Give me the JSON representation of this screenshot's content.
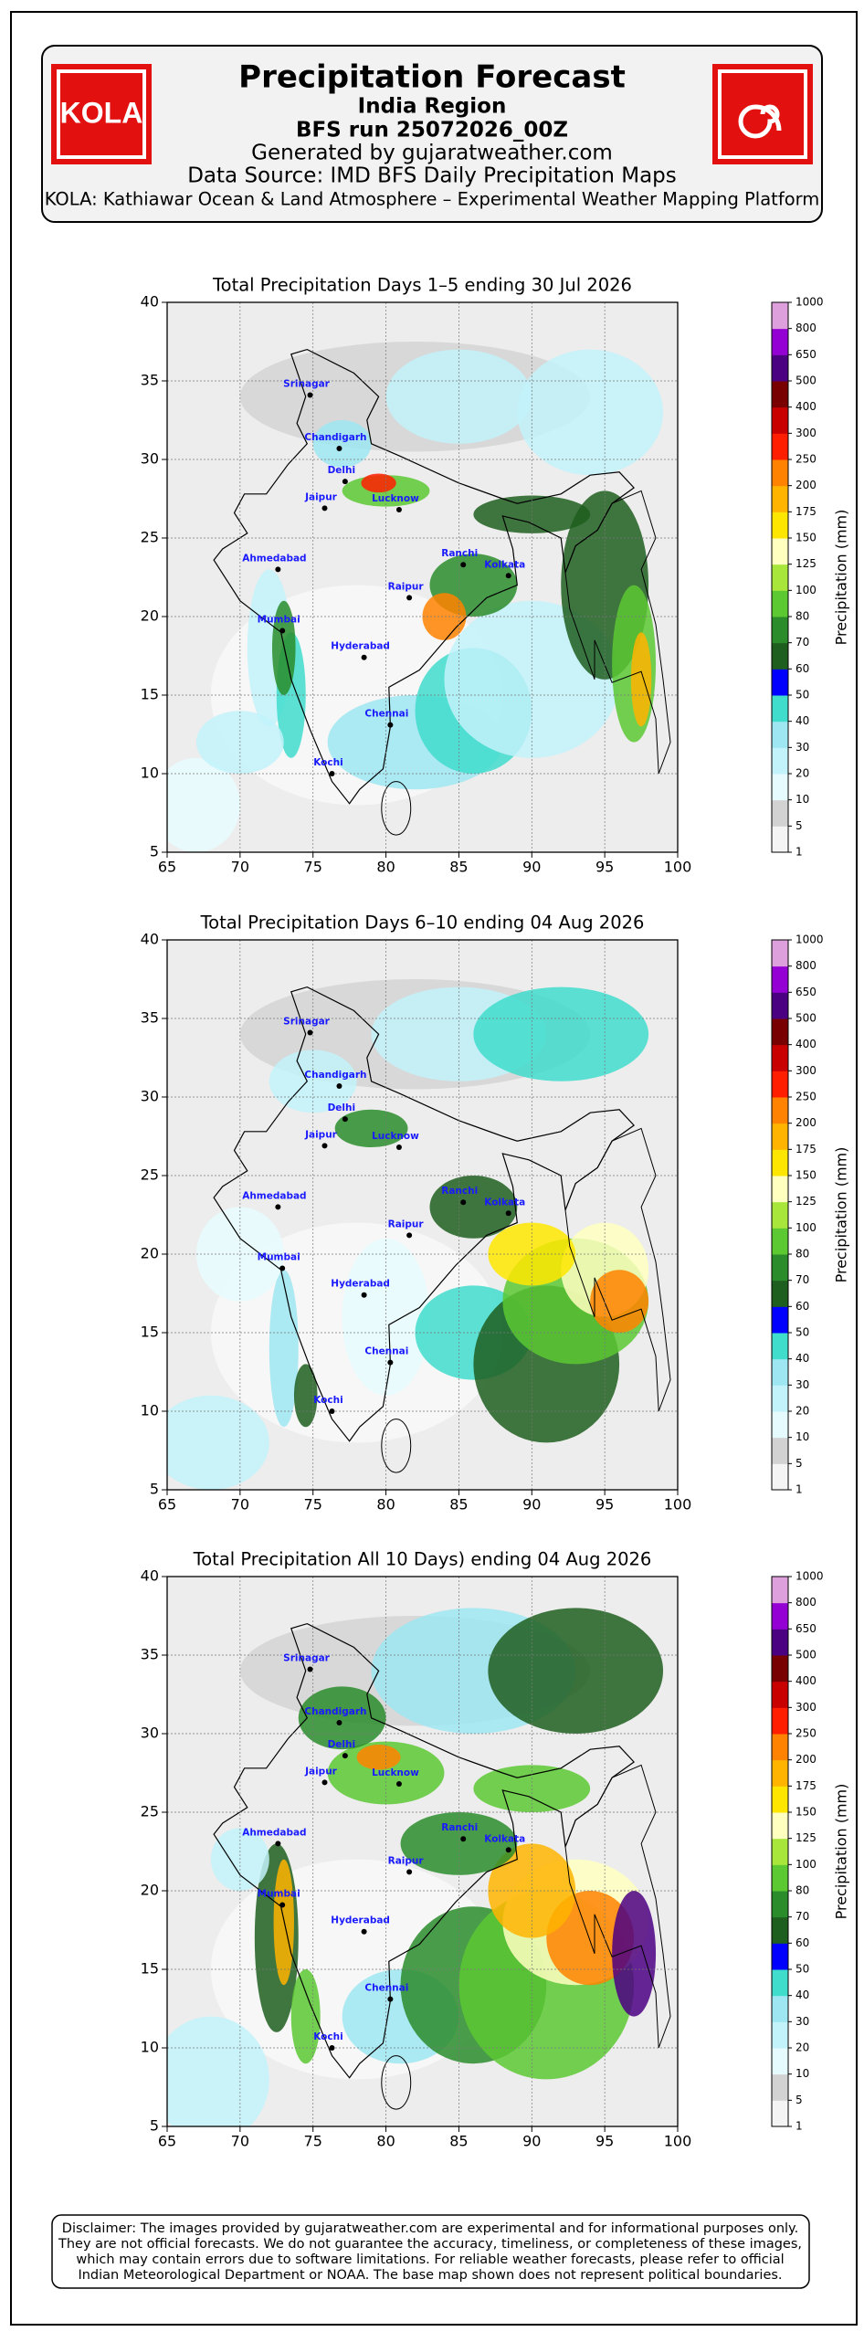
{
  "header": {
    "logo_left": "KOLA",
    "title": "Precipitation Forecast",
    "lines": [
      "India Region",
      "BFS run 25072026_00Z",
      "Generated by gujaratweather.com",
      "Data Source: IMD BFS Daily Precipitation Maps",
      "KOLA: Kathiawar Ocean & Land Atmosphere – Experimental Weather Mapping Platform"
    ]
  },
  "cities": [
    "Srinagar",
    "Chandigarh",
    "Delhi",
    "Jaipur",
    "Lucknow",
    "Ahmedabad",
    "Ranchi",
    "Kolkata",
    "Raipur",
    "Mumbai",
    "Hyderabad",
    "Chennai",
    "Kochi"
  ],
  "colorbar": {
    "label": "Precipitation (mm)",
    "levels": [
      1,
      5,
      10,
      20,
      30,
      40,
      50,
      60,
      70,
      80,
      100,
      125,
      150,
      175,
      200,
      250,
      300,
      400,
      500,
      650,
      800,
      1000
    ],
    "colors": [
      "#f4f4f4",
      "#d2d2d2",
      "#e6fbfd",
      "#c2f2fa",
      "#9ee6f2",
      "#40dccc",
      "#0000ff",
      "#1e5e1e",
      "#2a8c2a",
      "#5cc832",
      "#a8e63c",
      "#ffffc0",
      "#ffe600",
      "#ffb400",
      "#ff8200",
      "#ff1e00",
      "#c80000",
      "#780000",
      "#4b0082",
      "#9400d3",
      "#dda0dd"
    ]
  },
  "panels": [
    {
      "title": "Total Precipitation Days 1–5 ending 30 Jul 2026",
      "xlim": [
        65,
        100
      ],
      "ylim": [
        5,
        40
      ],
      "xticks": [
        65,
        70,
        75,
        80,
        85,
        90,
        95,
        100
      ],
      "yticks": [
        5,
        10,
        15,
        20,
        25,
        30,
        35,
        40
      ]
    },
    {
      "title": "Total Precipitation Days 6–10 ending 04 Aug 2026",
      "xlim": [
        65,
        100
      ],
      "ylim": [
        5,
        40
      ],
      "xticks": [
        65,
        70,
        75,
        80,
        85,
        90,
        95,
        100
      ],
      "yticks": [
        5,
        10,
        15,
        20,
        25,
        30,
        35,
        40
      ]
    },
    {
      "title": "Total Precipitation All 10 Days) ending 04 Aug 2026",
      "xlim": [
        65,
        100
      ],
      "ylim": [
        5,
        40
      ],
      "xticks": [
        65,
        70,
        75,
        80,
        85,
        90,
        95,
        100
      ],
      "yticks": [
        5,
        10,
        15,
        20,
        25,
        30,
        35,
        40
      ]
    }
  ],
  "disclaimer": [
    "Disclaimer: The images provided by gujaratweather.com are experimental and for informational purposes only.",
    "They are not official forecasts. We do not guarantee the accuracy, timeliness, or completeness of these images,",
    "which may contain errors due to software limitations. For reliable weather forecasts, please refer to official",
    "Indian Meteorological Department or NOAA. The base map shown does not represent political boundaries."
  ]
}
